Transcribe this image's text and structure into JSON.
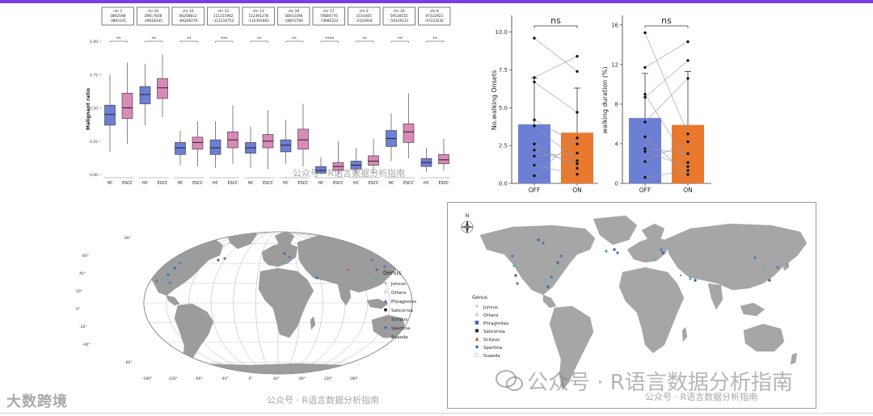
{
  "colors": {
    "hc": "#6d7fd4",
    "escc": "#d98ab8",
    "off": "#6d7fd4",
    "on": "#e8792e",
    "land": "#9c9c9c",
    "ocean": "#ffffff"
  },
  "chart_data": [
    {
      "type": "box",
      "ylabel": "Malignant ratio",
      "ylim": [
        0,
        1
      ],
      "yticks": [
        "0.00",
        "0.25",
        "0.50",
        "0.75",
        "1.00"
      ],
      "groups": [
        "HC",
        "ESCC"
      ],
      "panels": [
        {
          "header": [
            "chr 1",
            "3892598",
            "-3893141"
          ],
          "sig": "**",
          "boxes": [
            {
              "group": "HC",
              "min": 0.17,
              "q1": 0.37,
              "median": 0.45,
              "q3": 0.52,
              "max": 0.75
            },
            {
              "group": "ESCC",
              "min": 0.23,
              "q1": 0.42,
              "median": 0.5,
              "q3": 0.61,
              "max": 0.84
            }
          ]
        },
        {
          "header": [
            "chr 10",
            "29617838",
            "-29618345"
          ],
          "sig": "**",
          "boxes": [
            {
              "group": "HC",
              "min": 0.37,
              "q1": 0.53,
              "median": 0.6,
              "q3": 0.66,
              "max": 0.83
            },
            {
              "group": "ESCC",
              "min": 0.43,
              "q1": 0.57,
              "median": 0.65,
              "q3": 0.72,
              "max": 0.9
            }
          ]
        },
        {
          "header": [
            "chr 10",
            "66208612",
            "-66209270"
          ],
          "sig": "**",
          "boxes": [
            {
              "group": "HC",
              "min": 0.07,
              "q1": 0.15,
              "median": 0.2,
              "q3": 0.24,
              "max": 0.33
            },
            {
              "group": "ESCC",
              "min": 0.06,
              "q1": 0.19,
              "median": 0.24,
              "q3": 0.28,
              "max": 0.4
            }
          ]
        },
        {
          "header": [
            "chr 12",
            "111215962",
            "-111216753"
          ],
          "sig": "***",
          "boxes": [
            {
              "group": "HC",
              "min": 0.05,
              "q1": 0.15,
              "median": 0.2,
              "q3": 0.26,
              "max": 0.4
            },
            {
              "group": "ESCC",
              "min": 0.08,
              "q1": 0.2,
              "median": 0.26,
              "q3": 0.32,
              "max": 0.52
            }
          ]
        },
        {
          "header": [
            "chr 13",
            "112391278",
            "-112391983"
          ],
          "sig": "**",
          "boxes": [
            {
              "group": "HC",
              "min": 0.05,
              "q1": 0.16,
              "median": 0.2,
              "q3": 0.24,
              "max": 0.36
            },
            {
              "group": "ESCC",
              "min": 0.04,
              "q1": 0.2,
              "median": 0.25,
              "q3": 0.3,
              "max": 0.48
            }
          ]
        },
        {
          "header": [
            "chr 16",
            "58053198",
            "-58053760"
          ],
          "sig": "**",
          "boxes": [
            {
              "group": "HC",
              "min": 0.08,
              "q1": 0.17,
              "median": 0.22,
              "q3": 0.26,
              "max": 0.41
            },
            {
              "group": "ESCC",
              "min": 0.06,
              "q1": 0.19,
              "median": 0.26,
              "q3": 0.34,
              "max": 0.53
            }
          ]
        },
        {
          "header": [
            "chr 17",
            "74684776",
            "-74685222"
          ],
          "sig": "****",
          "boxes": [
            {
              "group": "HC",
              "min": 0.0,
              "q1": 0.01,
              "median": 0.03,
              "q3": 0.06,
              "max": 0.13
            },
            {
              "group": "ESCC",
              "min": 0.0,
              "q1": 0.03,
              "median": 0.06,
              "q3": 0.09,
              "max": 0.25
            }
          ]
        },
        {
          "header": [
            "chr 2",
            "2103405",
            "-2103918"
          ],
          "sig": "**",
          "boxes": [
            {
              "group": "HC",
              "min": 0.0,
              "q1": 0.04,
              "median": 0.07,
              "q3": 0.1,
              "max": 0.2
            },
            {
              "group": "ESCC",
              "min": 0.01,
              "q1": 0.07,
              "median": 0.1,
              "q3": 0.14,
              "max": 0.27
            }
          ]
        },
        {
          "header": [
            "chr 20",
            "59128555",
            "-59129121"
          ],
          "sig": "**",
          "boxes": [
            {
              "group": "HC",
              "min": 0.1,
              "q1": 0.21,
              "median": 0.27,
              "q3": 0.33,
              "max": 0.46
            },
            {
              "group": "ESCC",
              "min": 0.12,
              "q1": 0.24,
              "median": 0.32,
              "q3": 0.38,
              "max": 0.61
            }
          ]
        },
        {
          "header": [
            "chr 8",
            "97222923",
            "-97223542"
          ],
          "sig": "**",
          "boxes": [
            {
              "group": "HC",
              "min": 0.02,
              "q1": 0.06,
              "median": 0.09,
              "q3": 0.12,
              "max": 0.2
            },
            {
              "group": "ESCC",
              "min": 0.03,
              "q1": 0.08,
              "median": 0.11,
              "q3": 0.15,
              "max": 0.27
            }
          ]
        }
      ]
    },
    {
      "type": "bar",
      "categories": [
        "OFF",
        "ON"
      ],
      "values": [
        3.9,
        3.35
      ],
      "errors": [
        3.05,
        2.95
      ],
      "ylabel": "No.walking Onsets",
      "ylim": [
        0,
        11
      ],
      "yticks": [
        "0.0",
        "2.5",
        "5.0",
        "7.5",
        "10.0"
      ],
      "sig": "ns",
      "pairs": [
        [
          9.6,
          7.4
        ],
        [
          7.0,
          8.4
        ],
        [
          6.7,
          4.7
        ],
        [
          4.2,
          2.6
        ],
        [
          3.8,
          1.5
        ],
        [
          2.6,
          1.0
        ],
        [
          2.2,
          1.3
        ],
        [
          1.8,
          2.0
        ],
        [
          1.2,
          0.6
        ],
        [
          0.5,
          3.0
        ]
      ]
    },
    {
      "type": "bar",
      "categories": [
        "OFF",
        "ON"
      ],
      "values": [
        6.6,
        5.9
      ],
      "errors": [
        4.5,
        5.4
      ],
      "ylabel": "walking duration (%)",
      "ylim": [
        0,
        16.8
      ],
      "yticks": [
        "0",
        "4",
        "8",
        "12",
        "16"
      ],
      "sig": "ns",
      "pairs": [
        [
          15.2,
          5.0
        ],
        [
          11.7,
          14.3
        ],
        [
          9.0,
          2.1
        ],
        [
          8.7,
          12.4
        ],
        [
          6.2,
          10.6
        ],
        [
          4.7,
          0.9
        ],
        [
          3.5,
          3.0
        ],
        [
          3.2,
          1.7
        ],
        [
          2.2,
          4.2
        ],
        [
          0.6,
          1.3
        ]
      ]
    },
    {
      "type": "map",
      "projection": "Robinson",
      "legend_title": "Genus",
      "legend": [
        "Juncus",
        "Others",
        "Phragmites",
        "Salicornia",
        "Scirpus",
        "Spartina",
        "Suaeda"
      ],
      "lat_labels": [
        "80°",
        "60°",
        "40°",
        "20°",
        "0°",
        "-20°",
        "-40°",
        "-60°"
      ],
      "lon_labels": [
        "-180°",
        "-120°",
        "-60°",
        "-40°",
        "0°",
        "40°",
        "80°",
        "120°",
        "180°"
      ]
    },
    {
      "type": "map",
      "projection": "equirectangular",
      "legend_title": "Genus",
      "legend": [
        "Juncus",
        "Others",
        "Phragmites",
        "Salicornia",
        "Scirpus",
        "Spartina",
        "Suaeda"
      ],
      "north": "N"
    }
  ],
  "watermarks": {
    "main": "公众号 · R语言数据分析指南",
    "small": "公众号 · R语言数据分析指南",
    "logo": "大数跨境"
  }
}
